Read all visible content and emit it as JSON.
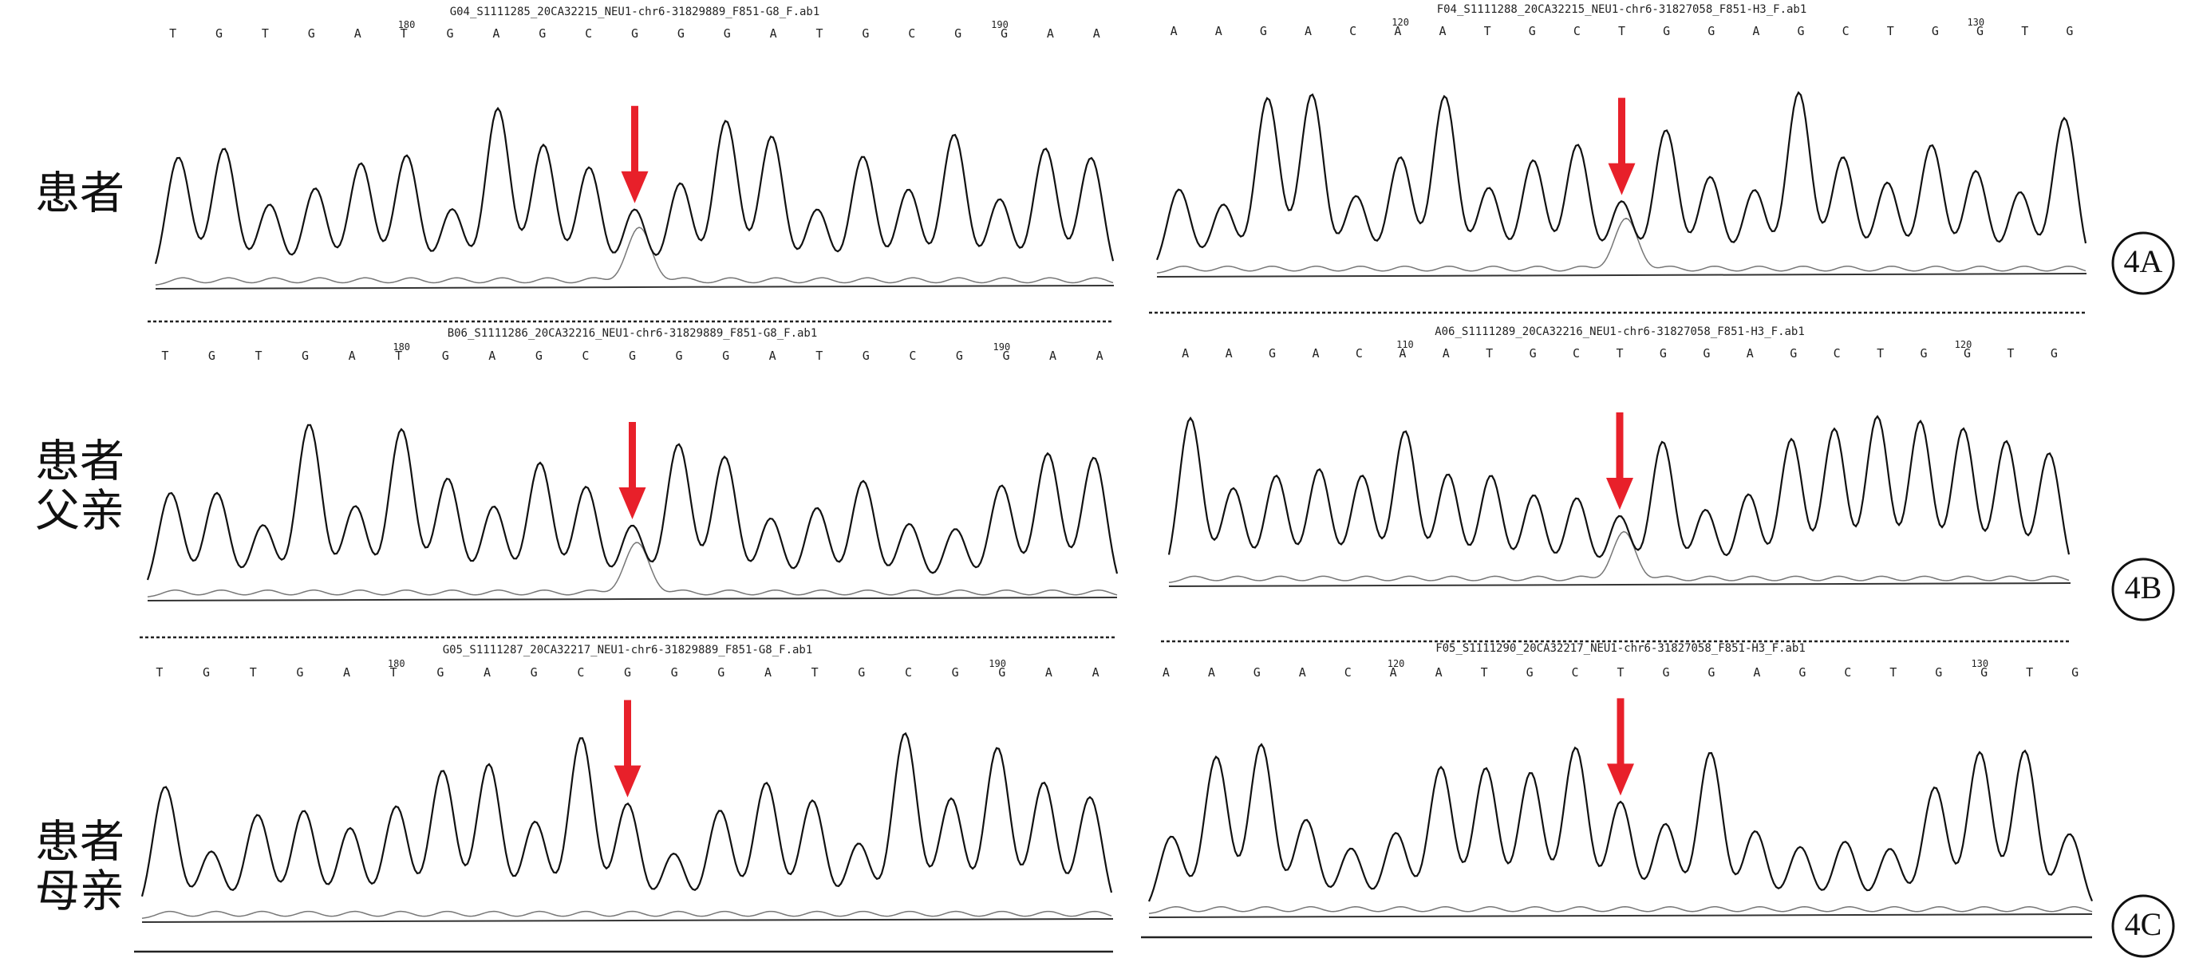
{
  "rows": [
    {
      "label": [
        "患者"
      ],
      "panel": "4A",
      "traces": [
        {
          "file": "G04_S1111285_20CA32215_NEU1-chr6-31829889_F851-G8_F.ab1",
          "bases": "T G T G A T G A G C G G G A T G C G G A A",
          "positions": [
            "180",
            "190"
          ]
        },
        {
          "file": "F04_S1111288_20CA32215_NEU1-chr6-31827058_F851-H3_F.ab1",
          "bases": "A A G A C A A T G C T G G A G C T G G T G",
          "positions": [
            "120",
            "130"
          ]
        }
      ]
    },
    {
      "label": [
        "患者",
        "父亲"
      ],
      "panel": "4B",
      "traces": [
        {
          "file": "B06_S1111286_20CA32216_NEU1-chr6-31829889_F851-G8_F.ab1",
          "bases": "T G T G A T G A G C G G G A T G C G G A A",
          "positions": [
            "180",
            "190"
          ]
        },
        {
          "file": "A06_S1111289_20CA32216_NEU1-chr6-31827058_F851-H3_F.ab1",
          "bases": "A A G A C A A T G C T G G A G C T G G T G",
          "positions": [
            "110",
            "120"
          ]
        }
      ]
    },
    {
      "label": [
        "患者",
        "母亲"
      ],
      "panel": "4C",
      "traces": [
        {
          "file": "G05_S1111287_20CA32217_NEU1-chr6-31829889_F851-G8_F.ab1",
          "bases": "T G T G A T G A G C G G G A T G C G G A A",
          "positions": [
            "180",
            "190"
          ]
        },
        {
          "file": "F05_S1111290_20CA32217_NEU1-chr6-31827058_F851-H3_F.ab1",
          "bases": "A A G A C A A T G C T G G A G C T G G T G",
          "positions": [
            "120",
            "130"
          ]
        }
      ]
    }
  ]
}
